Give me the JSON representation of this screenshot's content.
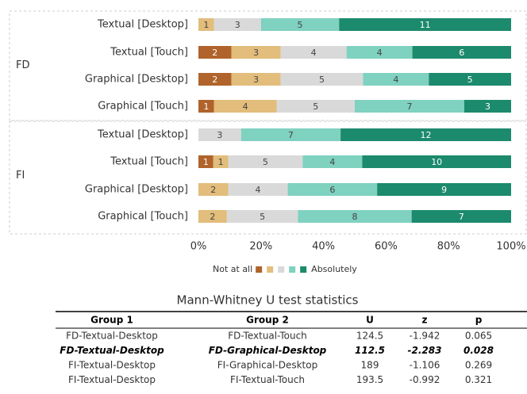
{
  "chart_data": {
    "type": "bar",
    "orientation": "horizontal",
    "stacked": "percent",
    "categories": [
      "Textual [Desktop]",
      "Textual [Touch]",
      "Graphical [Desktop]",
      "Graphical [Touch]",
      "Textual [Desktop]",
      "Textual [Touch]",
      "Graphical [Desktop]",
      "Graphical [Touch]"
    ],
    "groups": [
      "FD",
      "FI"
    ],
    "series": [
      {
        "name": "Not at all",
        "color": "#b0632b",
        "values": [
          0,
          2,
          2,
          1,
          0,
          1,
          0,
          0
        ]
      },
      {
        "name": null,
        "color": "#e2bd7b",
        "values": [
          1,
          3,
          3,
          4,
          0,
          1,
          2,
          2
        ]
      },
      {
        "name": null,
        "color": "#d9d9d9",
        "values": [
          3,
          4,
          5,
          5,
          3,
          5,
          4,
          5
        ]
      },
      {
        "name": null,
        "color": "#7fd1c0",
        "values": [
          5,
          4,
          4,
          7,
          7,
          4,
          6,
          8
        ]
      },
      {
        "name": "Absolutely",
        "color": "#1c8a6c",
        "values": [
          11,
          6,
          5,
          3,
          12,
          10,
          9,
          7
        ]
      }
    ],
    "xlim": [
      0,
      100
    ],
    "xticks": [
      {
        "value": 0,
        "label": "0%"
      },
      {
        "value": 20,
        "label": "20%"
      },
      {
        "value": 40,
        "label": "40%"
      },
      {
        "value": 60,
        "label": "60%"
      },
      {
        "value": 80,
        "label": "80%"
      },
      {
        "value": 100,
        "label": "100%"
      }
    ],
    "legend": "bottom"
  },
  "table": {
    "title": "Mann-Whitney U test statistics",
    "columns": [
      "Group 1",
      "Group 2",
      "U",
      "z",
      "p"
    ],
    "rows": [
      [
        "FD-Textual-Desktop",
        "FD-Textual-Touch",
        "124.5",
        "-1.942",
        "0.065"
      ],
      [
        "FD-Textual-Desktop",
        "FD-Graphical-Desktop",
        "112.5",
        "-2.283",
        "0.028"
      ],
      [
        "FI-Textual-Desktop",
        "FI-Graphical-Desktop",
        "189",
        "-1.106",
        "0.269"
      ],
      [
        "FI-Textual-Desktop",
        "FI-Textual-Touch",
        "193.5",
        "-0.992",
        "0.321"
      ]
    ],
    "highlight_row": 1
  }
}
